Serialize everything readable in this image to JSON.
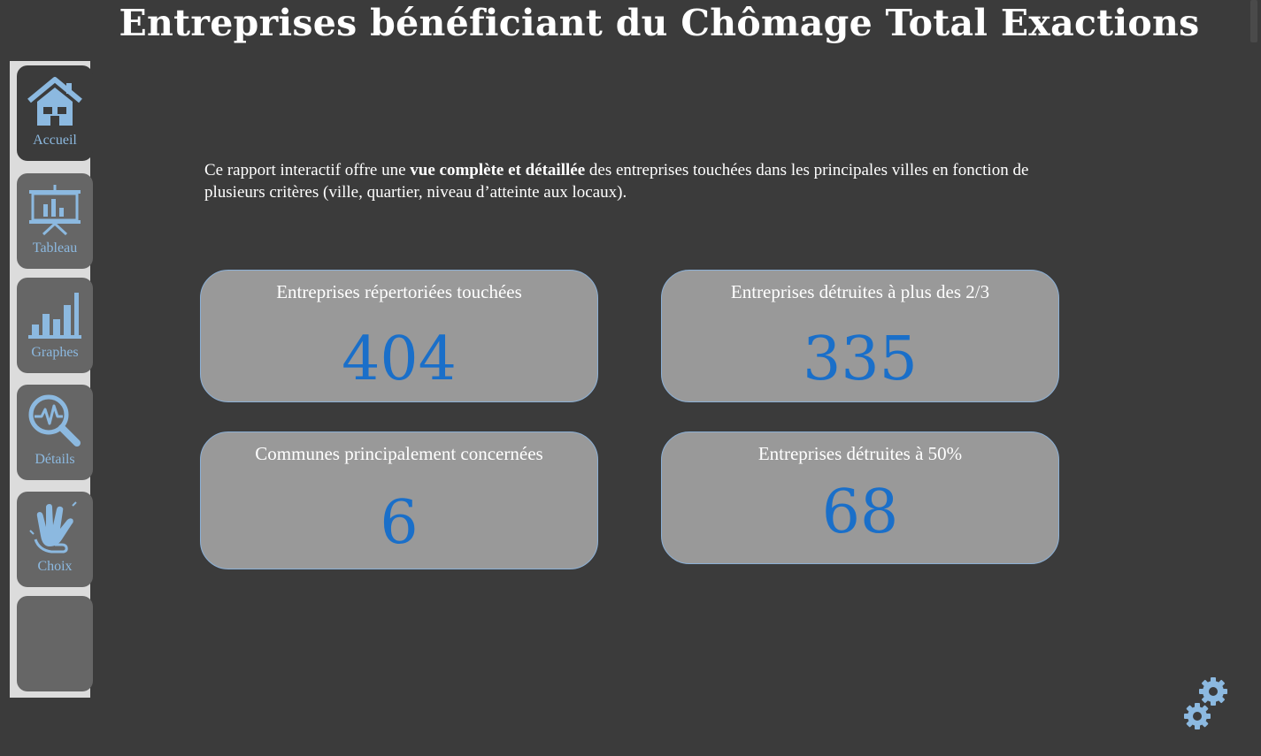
{
  "header": {
    "title": "Entreprises bénéficiant du Chômage Total Exactions"
  },
  "sidebar": {
    "items": [
      {
        "label": "Accueil",
        "icon": "home-icon"
      },
      {
        "label": "Tableau",
        "icon": "presentation-board-icon"
      },
      {
        "label": "Graphes",
        "icon": "bar-chart-icon"
      },
      {
        "label": "Détails",
        "icon": "magnifier-pulse-icon"
      },
      {
        "label": "Choix",
        "icon": "hand-sign-icon"
      },
      {
        "label": "",
        "icon": ""
      }
    ]
  },
  "intro": {
    "before": "Ce rapport interactif offre une ",
    "bold": "vue complète et détaillée",
    "after": " des entreprises touchées dans les principales villes en fonction de plusieurs critères (ville, quartier, niveau d’atteinte aux locaux)."
  },
  "kpis": [
    {
      "label": "Entreprises répertoriées touchées",
      "value": "404"
    },
    {
      "label": "Entreprises détruites à plus des 2/3",
      "value": "335"
    },
    {
      "label": "Communes principalement concernées",
      "value": "6"
    },
    {
      "label": "Entreprises détruites à 50%",
      "value": "68"
    }
  ],
  "colors": {
    "background": "#3b3b3b",
    "accent": "#8cb9e0",
    "kpi_value": "#1a6fc9",
    "card": "#999999"
  },
  "settings": {
    "icon": "gears-icon"
  }
}
